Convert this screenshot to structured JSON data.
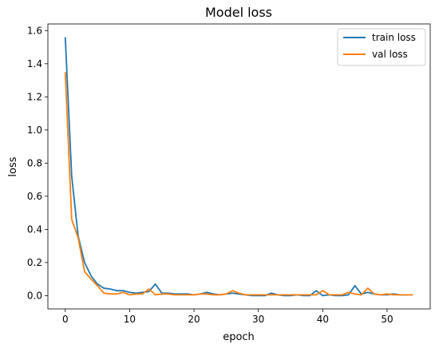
{
  "chart_data": {
    "type": "line",
    "title": "Model loss",
    "xlabel": "epoch",
    "ylabel": "loss",
    "xlim": [
      -2.7,
      56.7
    ],
    "ylim": [
      -0.08,
      1.64
    ],
    "xticks": [
      0,
      10,
      20,
      30,
      40,
      50
    ],
    "yticks": [
      0.0,
      0.2,
      0.4,
      0.6,
      0.8,
      1.0,
      1.2,
      1.4,
      1.6
    ],
    "ytick_labels": [
      "0.0",
      "0.2",
      "0.4",
      "0.6",
      "0.8",
      "1.0",
      "1.2",
      "1.4",
      "1.6"
    ],
    "grid": false,
    "legend_position": "top-right",
    "series": [
      {
        "name": "train loss",
        "color": "#1f77b4",
        "x": [
          0,
          1,
          2,
          3,
          4,
          5,
          6,
          7,
          8,
          9,
          10,
          11,
          12,
          13,
          14,
          15,
          16,
          17,
          18,
          19,
          20,
          21,
          22,
          23,
          24,
          25,
          26,
          27,
          28,
          29,
          30,
          31,
          32,
          33,
          34,
          35,
          36,
          37,
          38,
          39,
          40,
          41,
          42,
          43,
          44,
          45,
          46,
          47,
          48,
          49,
          50,
          51,
          52,
          53,
          54
        ],
        "values": [
          1.56,
          0.72,
          0.36,
          0.2,
          0.12,
          0.07,
          0.045,
          0.04,
          0.03,
          0.03,
          0.02,
          0.015,
          0.02,
          0.025,
          0.07,
          0.015,
          0.015,
          0.01,
          0.01,
          0.01,
          0.005,
          0.01,
          0.02,
          0.01,
          0.005,
          0.01,
          0.015,
          0.01,
          0.005,
          0.0,
          0.0,
          0.0,
          0.015,
          0.005,
          0.0,
          0.0,
          0.005,
          0.0,
          0.0,
          0.03,
          0.0,
          0.005,
          0.0,
          0.0,
          0.005,
          0.06,
          0.01,
          0.02,
          0.01,
          0.005,
          0.005,
          0.01,
          0.005,
          0.005,
          0.005
        ]
      },
      {
        "name": "val loss",
        "color": "#ff7f0e",
        "x": [
          0,
          1,
          2,
          3,
          4,
          5,
          6,
          7,
          8,
          9,
          10,
          11,
          12,
          13,
          14,
          15,
          16,
          17,
          18,
          19,
          20,
          21,
          22,
          23,
          24,
          25,
          26,
          27,
          28,
          29,
          30,
          31,
          32,
          33,
          34,
          35,
          36,
          37,
          38,
          39,
          40,
          41,
          42,
          43,
          44,
          45,
          46,
          47,
          48,
          49,
          50,
          51,
          52,
          53,
          54
        ],
        "values": [
          1.35,
          0.46,
          0.35,
          0.145,
          0.1,
          0.06,
          0.015,
          0.01,
          0.01,
          0.02,
          0.005,
          0.01,
          0.01,
          0.04,
          0.005,
          0.01,
          0.01,
          0.005,
          0.005,
          0.005,
          0.005,
          0.01,
          0.01,
          0.005,
          0.005,
          0.01,
          0.03,
          0.015,
          0.005,
          0.005,
          0.005,
          0.005,
          0.005,
          0.005,
          0.005,
          0.005,
          0.005,
          0.005,
          0.005,
          0.005,
          0.03,
          0.005,
          0.005,
          0.005,
          0.02,
          0.01,
          0.005,
          0.045,
          0.01,
          0.005,
          0.01,
          0.005,
          0.005,
          0.005,
          0.005
        ]
      }
    ]
  }
}
